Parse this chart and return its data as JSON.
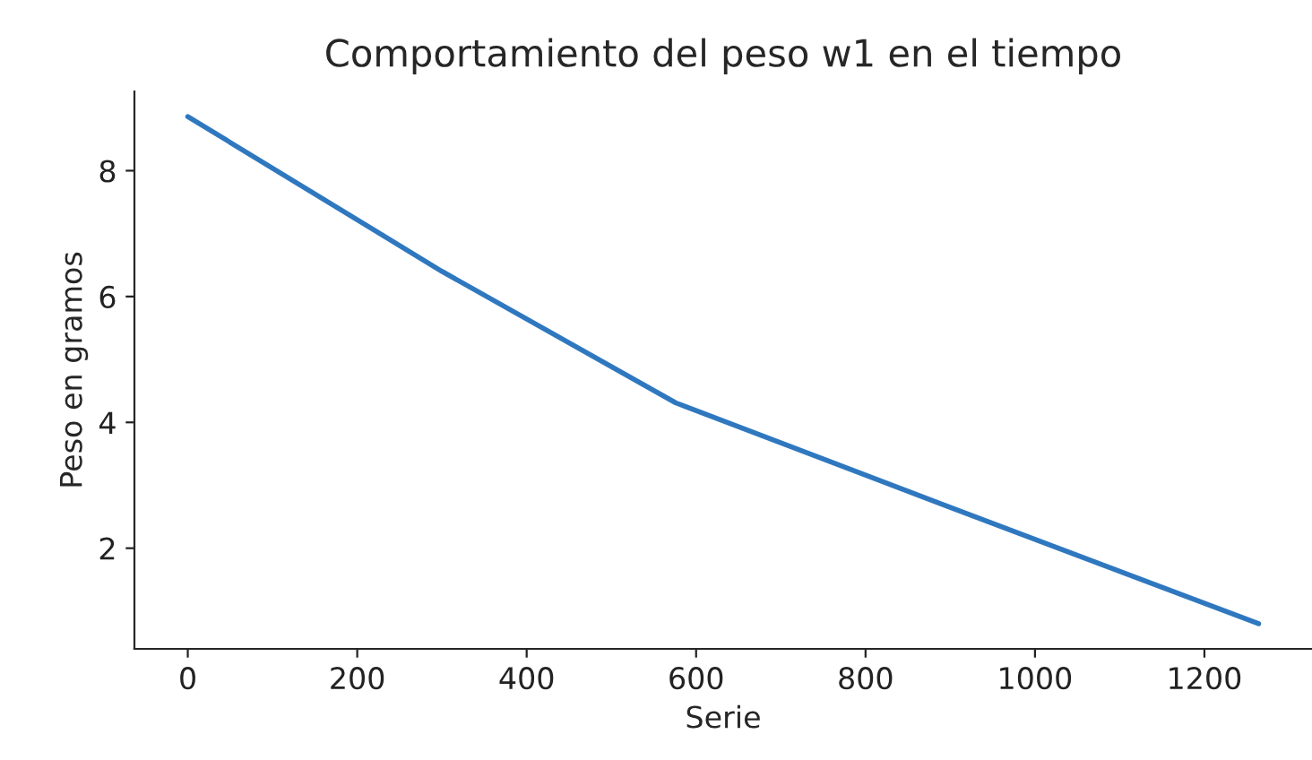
{
  "chart_data": {
    "type": "line",
    "title": "Comportamiento del peso w1 en el tiempo",
    "xlabel": "Serie",
    "ylabel": "Peso en gramos",
    "x": [
      0,
      300,
      576,
      900,
      1264
    ],
    "series": [
      {
        "color": "#2f78bf",
        "values": [
          8.86,
          6.4,
          4.31,
          2.65,
          0.8
        ]
      }
    ],
    "xlim": [
      -63,
      1327
    ],
    "ylim": [
      0.4,
      9.26
    ],
    "xticks": [
      0,
      200,
      400,
      600,
      800,
      1000,
      1200
    ],
    "yticks": [
      2,
      4,
      6,
      8
    ],
    "grid": false,
    "marker": "none",
    "line_style": "solid"
  }
}
